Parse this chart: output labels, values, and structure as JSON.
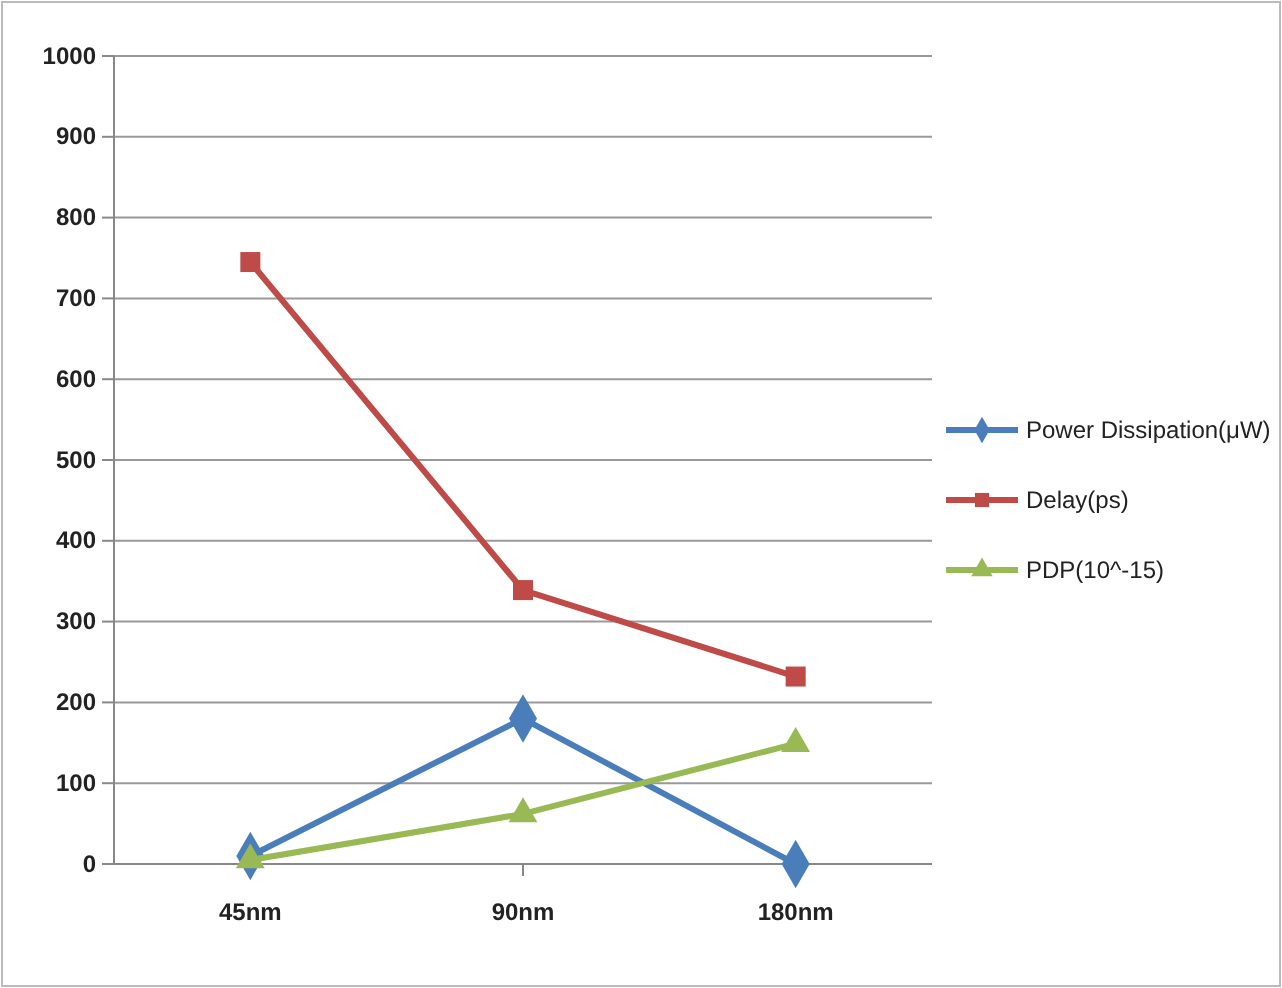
{
  "chart_data": {
    "type": "line",
    "categories": [
      "45nm",
      "90nm",
      "180nm"
    ],
    "series": [
      {
        "name": "Power Dissipation(μW)",
        "color": "#4a7ebb",
        "values": [
          10,
          180,
          0
        ],
        "marker": "diamond"
      },
      {
        "name": "Delay(ps)",
        "color": "#be4b48",
        "values": [
          745,
          339,
          232
        ],
        "marker": "square"
      },
      {
        "name": "PDP(10^-15)",
        "color": "#98b954",
        "values": [
          5,
          62,
          149
        ],
        "marker": "triangle"
      }
    ],
    "ylim": [
      0,
      1000
    ],
    "yticks": [
      0,
      100,
      200,
      300,
      400,
      500,
      600,
      700,
      800,
      900,
      1000
    ],
    "grid": "y",
    "legend": "right"
  }
}
